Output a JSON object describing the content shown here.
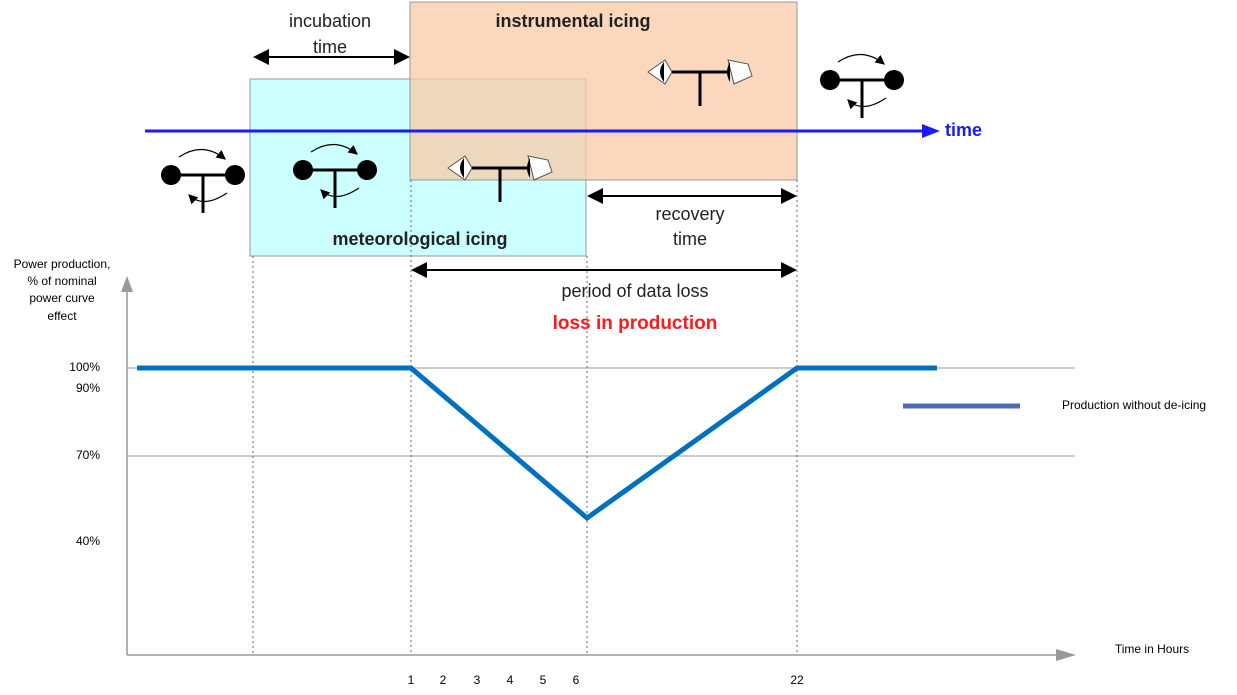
{
  "diagram": {
    "instrumental_icing": "instrumental icing",
    "meteorological_icing": "meteorological icing",
    "incubation_time": [
      "incubation",
      "time"
    ],
    "recovery_time": [
      "recovery",
      "time"
    ],
    "time_arrow": "time",
    "data_loss": "period of data loss",
    "production_loss": "loss in production"
  },
  "chart": {
    "y_axis_title": [
      "Power production,",
      "% of nominal",
      "power curve",
      "effect"
    ],
    "y_labels": [
      "100%",
      "90%",
      "70%",
      "40%"
    ],
    "x_labels": [
      "1",
      "2",
      "3",
      "4",
      "5",
      "6",
      "22"
    ],
    "x_axis_title": "Time in Hours",
    "legend": "Production without de-icing"
  }
}
